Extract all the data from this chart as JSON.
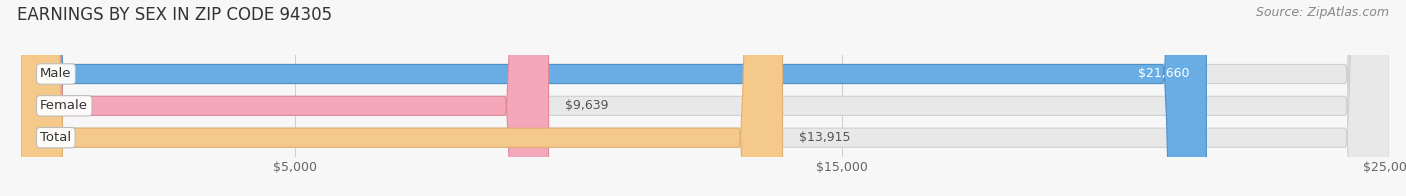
{
  "title": "EARNINGS BY SEX IN ZIP CODE 94305",
  "source": "Source: ZipAtlas.com",
  "categories": [
    "Male",
    "Female",
    "Total"
  ],
  "values": [
    21660,
    9639,
    13915
  ],
  "bar_colors": [
    "#6aade4",
    "#f4a7b9",
    "#f5c989"
  ],
  "bar_edge_colors": [
    "#5090c8",
    "#e08898",
    "#e0b070"
  ],
  "value_label_colors": [
    "#ffffff",
    "#555555",
    "#555555"
  ],
  "value_labels": [
    "$21,660",
    "$9,639",
    "$13,915"
  ],
  "xlim": [
    0,
    25000
  ],
  "xticks": [
    5000,
    15000,
    25000
  ],
  "xtick_labels": [
    "$5,000",
    "$15,000",
    "$25,000"
  ],
  "background_color": "#f7f7f7",
  "bar_bg_color": "#e8e8e8",
  "bar_bg_edge_color": "#d0d0d0",
  "title_fontsize": 12,
  "source_fontsize": 9,
  "tick_fontsize": 9,
  "label_fontsize": 9.5,
  "value_fontsize": 9
}
